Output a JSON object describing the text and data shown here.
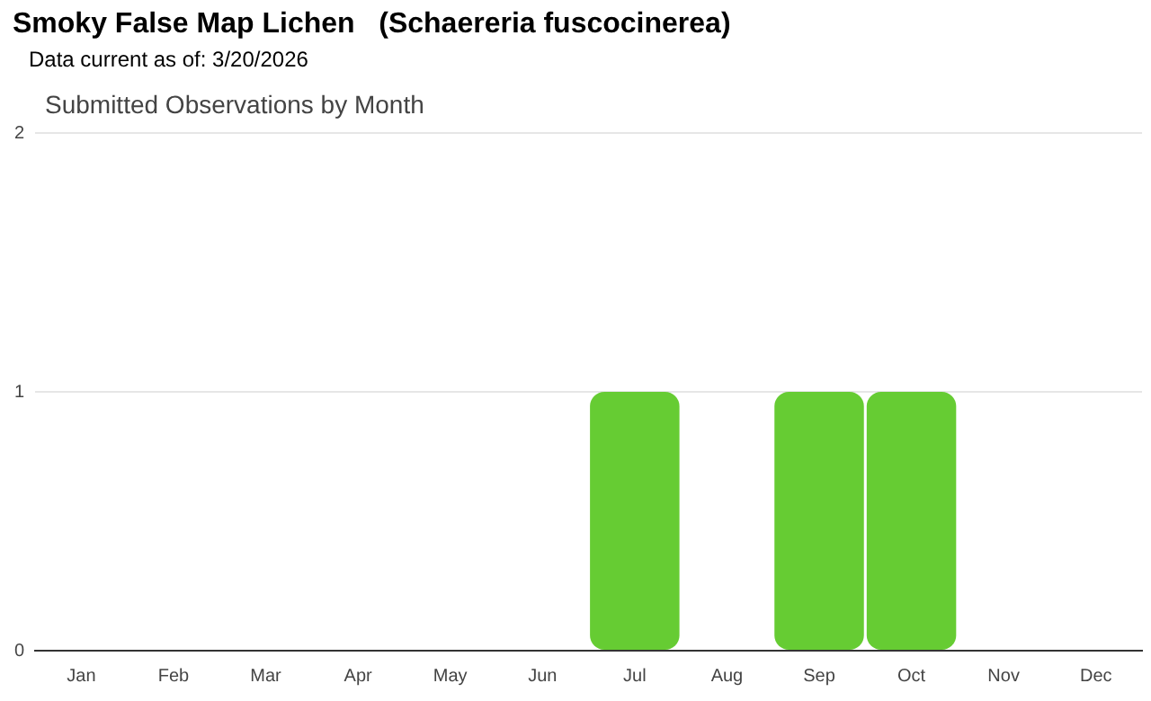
{
  "chart_data": {
    "type": "bar",
    "title": "Smoky False Map Lichen   (Schaereria fuscocinerea)",
    "subtitle": "Data current as of: 3/20/2026",
    "annotations": [
      "Submitted Observations by Month"
    ],
    "categories": [
      "Jan",
      "Feb",
      "Mar",
      "Apr",
      "May",
      "Jun",
      "Jul",
      "Aug",
      "Sep",
      "Oct",
      "Nov",
      "Dec"
    ],
    "values": [
      0,
      0,
      0,
      0,
      0,
      0,
      1,
      0,
      1,
      1,
      0,
      0
    ],
    "color": "#66cc33",
    "ylim": [
      0,
      2
    ],
    "yticks": [
      0,
      1,
      2
    ],
    "grid": "y",
    "legend": false
  }
}
